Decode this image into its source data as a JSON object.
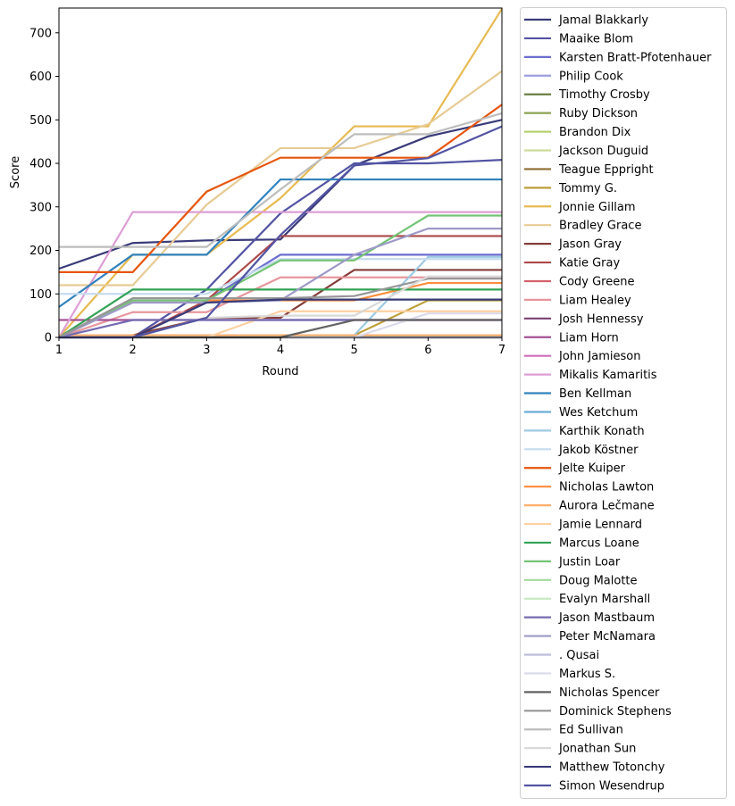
{
  "chart_data": {
    "type": "line",
    "xlabel": "Round",
    "ylabel": "Score",
    "x": [
      1,
      2,
      3,
      4,
      5,
      6,
      7
    ],
    "xlim": [
      1,
      7
    ],
    "ylim": [
      0,
      757
    ],
    "xticks": [
      "1",
      "2",
      "3",
      "4",
      "5",
      "6",
      "7"
    ],
    "yticks": [
      "0",
      "100",
      "200",
      "300",
      "400",
      "500",
      "600",
      "700"
    ],
    "grid": false,
    "legend_placement": "outside-right",
    "series": [
      {
        "name": "Jamal Blakkarly",
        "color": "#393b79",
        "values": [
          158,
          217,
          223,
          225,
          395,
          462,
          500
        ]
      },
      {
        "name": "Maaike Blom",
        "color": "#5254a3",
        "values": [
          0,
          0,
          110,
          285,
          400,
          400,
          408
        ]
      },
      {
        "name": "Karsten Bratt-Pfotenhauer",
        "color": "#6b6ecf",
        "values": [
          0,
          85,
          85,
          190,
          190,
          190,
          190
        ]
      },
      {
        "name": "Philip Cook",
        "color": "#9c9ede",
        "values": [
          0,
          0,
          0,
          0,
          0,
          0,
          0
        ]
      },
      {
        "name": "Timothy Crosby",
        "color": "#637939",
        "values": [
          0,
          0,
          0,
          0,
          0,
          0,
          0
        ]
      },
      {
        "name": "Ruby Dickson",
        "color": "#8ca252",
        "values": [
          0,
          0,
          0,
          0,
          0,
          0,
          0
        ]
      },
      {
        "name": "Brandon Dix",
        "color": "#b5cf6b",
        "values": [
          0,
          0,
          0,
          0,
          0,
          0,
          0
        ]
      },
      {
        "name": "Jackson Duguid",
        "color": "#cedb9c",
        "values": [
          0,
          0,
          0,
          0,
          0,
          0,
          0
        ]
      },
      {
        "name": "Teague Eppright",
        "color": "#8c6d31",
        "values": [
          0,
          0,
          0,
          0,
          0,
          0,
          0
        ]
      },
      {
        "name": "Tommy G.",
        "color": "#bd9e39",
        "values": [
          0,
          0,
          0,
          0,
          5,
          85,
          85
        ]
      },
      {
        "name": "Jonnie Gillam",
        "color": "#e7ba52",
        "values": [
          0,
          190,
          190,
          320,
          485,
          485,
          755
        ]
      },
      {
        "name": "Bradley Grace",
        "color": "#e7cb94",
        "values": [
          120,
          120,
          305,
          435,
          435,
          490,
          612
        ]
      },
      {
        "name": "Jason Gray",
        "color": "#843c39",
        "values": [
          0,
          5,
          45,
          45,
          155,
          155,
          155
        ]
      },
      {
        "name": "Katie Gray",
        "color": "#ad494a",
        "values": [
          0,
          0,
          85,
          233,
          233,
          233,
          233
        ]
      },
      {
        "name": "Cody Greene",
        "color": "#d6616b",
        "values": [
          0,
          0,
          0,
          0,
          0,
          0,
          0
        ]
      },
      {
        "name": "Liam Healey",
        "color": "#e7969c",
        "values": [
          0,
          58,
          58,
          138,
          138,
          138,
          138
        ]
      },
      {
        "name": "Josh Hennessy",
        "color": "#7b4173",
        "values": [
          0,
          0,
          0,
          0,
          0,
          0,
          0
        ]
      },
      {
        "name": "Liam Horn",
        "color": "#a55194",
        "values": [
          40,
          40,
          40,
          40,
          40,
          40,
          40
        ]
      },
      {
        "name": "John Jamieson",
        "color": "#ce6dbd",
        "values": [
          0,
          0,
          0,
          0,
          0,
          0,
          0
        ]
      },
      {
        "name": "Mikalis Kamaritis",
        "color": "#de9ed6",
        "values": [
          0,
          288,
          288,
          288,
          288,
          288,
          288
        ]
      },
      {
        "name": "Ben Kellman",
        "color": "#3182bd",
        "values": [
          70,
          190,
          190,
          363,
          363,
          363,
          363
        ]
      },
      {
        "name": "Wes Ketchum",
        "color": "#6baed6",
        "values": [
          0,
          0,
          0,
          0,
          0,
          0,
          0
        ]
      },
      {
        "name": "Karthik Konath",
        "color": "#9ecae1",
        "values": [
          0,
          0,
          0,
          0,
          5,
          185,
          185
        ]
      },
      {
        "name": "Jakob Köstner",
        "color": "#c6dbef",
        "values": [
          100,
          100,
          100,
          180,
          180,
          180,
          180
        ]
      },
      {
        "name": "Jelte Kuiper",
        "color": "#e6550d",
        "values": [
          150,
          150,
          335,
          413,
          413,
          413,
          535
        ]
      },
      {
        "name": "Nicholas Lawton",
        "color": "#fd8d3c",
        "values": [
          0,
          85,
          85,
          85,
          85,
          125,
          125
        ]
      },
      {
        "name": "Aurora Lečmane",
        "color": "#fdae6b",
        "values": [
          5,
          5,
          5,
          5,
          5,
          5,
          5
        ]
      },
      {
        "name": "Jamie Lennard",
        "color": "#fdd0a2",
        "values": [
          0,
          0,
          0,
          60,
          60,
          60,
          60
        ]
      },
      {
        "name": "Marcus Loane",
        "color": "#31a354",
        "values": [
          0,
          110,
          110,
          110,
          110,
          110,
          110
        ]
      },
      {
        "name": "Justin Loar",
        "color": "#74c476",
        "values": [
          0,
          85,
          85,
          177,
          177,
          280,
          280
        ]
      },
      {
        "name": "Doug Malotte",
        "color": "#a1d99b",
        "values": [
          0,
          0,
          0,
          0,
          0,
          0,
          0
        ]
      },
      {
        "name": "Evalyn Marshall",
        "color": "#c7e9c0",
        "values": [
          0,
          0,
          0,
          0,
          0,
          0,
          0
        ]
      },
      {
        "name": "Jason Mastbaum",
        "color": "#756bb1",
        "values": [
          0,
          40,
          40,
          40,
          40,
          40,
          40
        ]
      },
      {
        "name": "Peter McNamara",
        "color": "#9e9ac8",
        "values": [
          0,
          80,
          80,
          85,
          190,
          250,
          250
        ]
      },
      {
        "name": ". Qusai",
        "color": "#bcbddc",
        "values": [
          0,
          0,
          0,
          0,
          0,
          0,
          0
        ]
      },
      {
        "name": "Markus S.",
        "color": "#dadaeb",
        "values": [
          0,
          0,
          0,
          0,
          0,
          55,
          55
        ]
      },
      {
        "name": "Nicholas Spencer",
        "color": "#636363",
        "values": [
          0,
          0,
          0,
          0,
          40,
          40,
          40
        ]
      },
      {
        "name": "Dominick Stephens",
        "color": "#969696",
        "values": [
          0,
          90,
          90,
          90,
          95,
          135,
          135
        ]
      },
      {
        "name": "Ed Sullivan",
        "color": "#bdbdbd",
        "values": [
          208,
          208,
          208,
          340,
          467,
          467,
          515
        ]
      },
      {
        "name": "Jonathan Sun",
        "color": "#d9d9d9",
        "values": [
          0,
          0,
          45,
          50,
          50,
          140,
          140
        ]
      },
      {
        "name": "Matthew Totonchy",
        "color": "#393b79",
        "values": [
          0,
          0,
          80,
          87,
          87,
          87,
          87
        ]
      },
      {
        "name": "Simon Wesendrup",
        "color": "#5254a3",
        "values": [
          0,
          0,
          45,
          235,
          395,
          412,
          485
        ]
      }
    ]
  }
}
